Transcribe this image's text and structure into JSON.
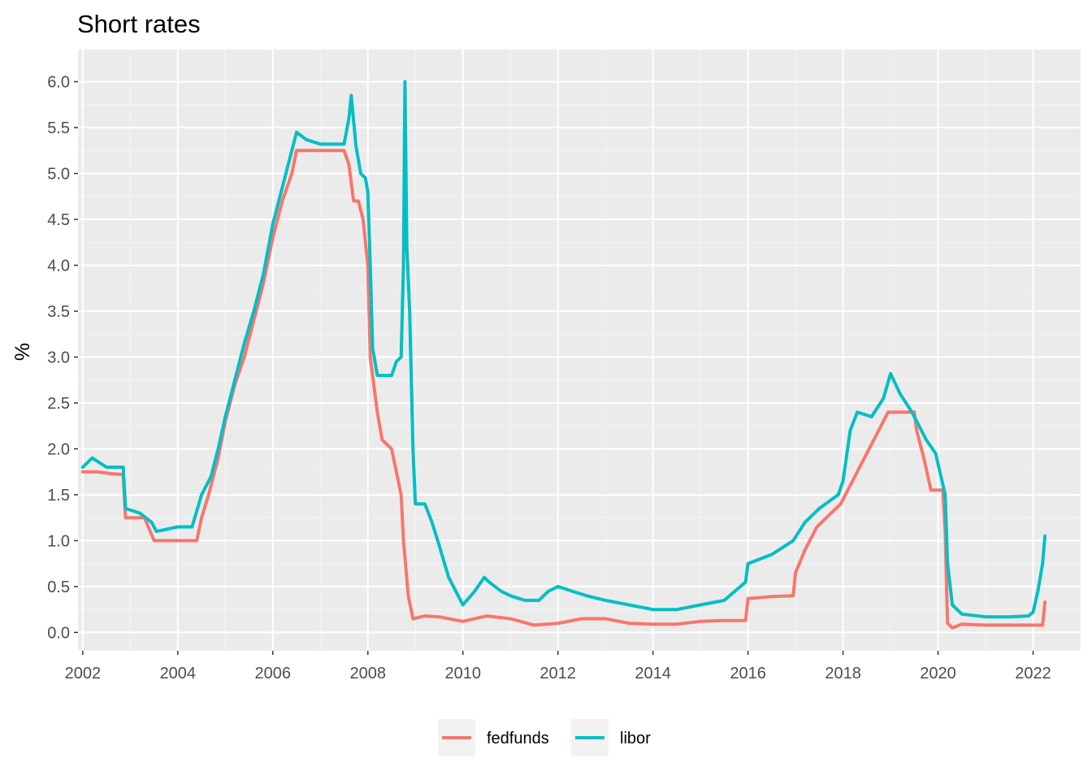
{
  "chart_data": {
    "type": "line",
    "title": "Short rates",
    "xlabel": "",
    "ylabel": "%",
    "xlim": [
      2001.9,
      2023.0
    ],
    "ylim": [
      -0.2,
      6.35
    ],
    "x_ticks": [
      "2002",
      "2004",
      "2006",
      "2008",
      "2010",
      "2012",
      "2014",
      "2016",
      "2018",
      "2020",
      "2022"
    ],
    "y_ticks": [
      "0.0",
      "0.5",
      "1.0",
      "1.5",
      "2.0",
      "2.5",
      "3.0",
      "3.5",
      "4.0",
      "4.5",
      "5.0",
      "5.5",
      "6.0"
    ],
    "grid": true,
    "legend_position": "bottom",
    "series": [
      {
        "name": "fedfunds",
        "color": "#F8766D",
        "points": [
          [
            2002.0,
            1.75
          ],
          [
            2002.3,
            1.75
          ],
          [
            2002.6,
            1.73
          ],
          [
            2002.85,
            1.72
          ],
          [
            2002.9,
            1.25
          ],
          [
            2003.3,
            1.25
          ],
          [
            2003.5,
            1.0
          ],
          [
            2004.0,
            1.0
          ],
          [
            2004.4,
            1.0
          ],
          [
            2004.5,
            1.25
          ],
          [
            2004.65,
            1.5
          ],
          [
            2004.85,
            1.9
          ],
          [
            2005.0,
            2.3
          ],
          [
            2005.2,
            2.7
          ],
          [
            2005.4,
            3.0
          ],
          [
            2005.6,
            3.4
          ],
          [
            2005.8,
            3.8
          ],
          [
            2006.0,
            4.3
          ],
          [
            2006.2,
            4.7
          ],
          [
            2006.4,
            5.0
          ],
          [
            2006.5,
            5.25
          ],
          [
            2007.0,
            5.25
          ],
          [
            2007.5,
            5.25
          ],
          [
            2007.6,
            5.1
          ],
          [
            2007.7,
            4.7
          ],
          [
            2007.8,
            4.7
          ],
          [
            2007.9,
            4.5
          ],
          [
            2008.0,
            4.0
          ],
          [
            2008.05,
            3.0
          ],
          [
            2008.2,
            2.4
          ],
          [
            2008.3,
            2.1
          ],
          [
            2008.5,
            2.0
          ],
          [
            2008.7,
            1.5
          ],
          [
            2008.75,
            1.0
          ],
          [
            2008.85,
            0.4
          ],
          [
            2008.95,
            0.15
          ],
          [
            2009.2,
            0.18
          ],
          [
            2009.5,
            0.17
          ],
          [
            2010.0,
            0.12
          ],
          [
            2010.5,
            0.18
          ],
          [
            2011.0,
            0.15
          ],
          [
            2011.5,
            0.08
          ],
          [
            2012.0,
            0.1
          ],
          [
            2012.5,
            0.15
          ],
          [
            2013.0,
            0.15
          ],
          [
            2013.5,
            0.1
          ],
          [
            2014.0,
            0.09
          ],
          [
            2014.5,
            0.09
          ],
          [
            2015.0,
            0.12
          ],
          [
            2015.5,
            0.13
          ],
          [
            2015.95,
            0.13
          ],
          [
            2016.0,
            0.37
          ],
          [
            2016.5,
            0.39
          ],
          [
            2016.95,
            0.4
          ],
          [
            2017.0,
            0.65
          ],
          [
            2017.2,
            0.9
          ],
          [
            2017.45,
            1.15
          ],
          [
            2017.95,
            1.4
          ],
          [
            2018.2,
            1.65
          ],
          [
            2018.45,
            1.9
          ],
          [
            2018.7,
            2.15
          ],
          [
            2018.95,
            2.4
          ],
          [
            2019.5,
            2.4
          ],
          [
            2019.55,
            2.2
          ],
          [
            2019.7,
            1.9
          ],
          [
            2019.85,
            1.55
          ],
          [
            2020.1,
            1.55
          ],
          [
            2020.15,
            1.1
          ],
          [
            2020.2,
            0.1
          ],
          [
            2020.3,
            0.05
          ],
          [
            2020.5,
            0.09
          ],
          [
            2021.0,
            0.08
          ],
          [
            2021.5,
            0.08
          ],
          [
            2022.0,
            0.08
          ],
          [
            2022.2,
            0.08
          ],
          [
            2022.25,
            0.33
          ]
        ]
      },
      {
        "name": "libor",
        "color": "#00BFC4",
        "points": [
          [
            2002.0,
            1.8
          ],
          [
            2002.2,
            1.9
          ],
          [
            2002.5,
            1.8
          ],
          [
            2002.85,
            1.8
          ],
          [
            2002.9,
            1.35
          ],
          [
            2003.2,
            1.3
          ],
          [
            2003.45,
            1.2
          ],
          [
            2003.55,
            1.1
          ],
          [
            2004.0,
            1.15
          ],
          [
            2004.3,
            1.15
          ],
          [
            2004.5,
            1.5
          ],
          [
            2004.7,
            1.7
          ],
          [
            2004.85,
            2.0
          ],
          [
            2005.0,
            2.35
          ],
          [
            2005.2,
            2.75
          ],
          [
            2005.4,
            3.15
          ],
          [
            2005.6,
            3.5
          ],
          [
            2005.8,
            3.9
          ],
          [
            2006.0,
            4.45
          ],
          [
            2006.2,
            4.85
          ],
          [
            2006.4,
            5.25
          ],
          [
            2006.5,
            5.45
          ],
          [
            2006.7,
            5.37
          ],
          [
            2007.0,
            5.32
          ],
          [
            2007.5,
            5.32
          ],
          [
            2007.6,
            5.6
          ],
          [
            2007.65,
            5.85
          ],
          [
            2007.75,
            5.3
          ],
          [
            2007.85,
            5.0
          ],
          [
            2007.95,
            4.95
          ],
          [
            2008.0,
            4.8
          ],
          [
            2008.05,
            4.0
          ],
          [
            2008.1,
            3.1
          ],
          [
            2008.2,
            2.8
          ],
          [
            2008.35,
            2.8
          ],
          [
            2008.5,
            2.8
          ],
          [
            2008.6,
            2.95
          ],
          [
            2008.7,
            3.0
          ],
          [
            2008.75,
            4.0
          ],
          [
            2008.78,
            6.0
          ],
          [
            2008.82,
            4.2
          ],
          [
            2008.88,
            3.5
          ],
          [
            2008.95,
            2.0
          ],
          [
            2009.0,
            1.4
          ],
          [
            2009.2,
            1.4
          ],
          [
            2009.35,
            1.2
          ],
          [
            2009.5,
            0.95
          ],
          [
            2009.7,
            0.6
          ],
          [
            2010.0,
            0.3
          ],
          [
            2010.25,
            0.45
          ],
          [
            2010.45,
            0.6
          ],
          [
            2010.55,
            0.55
          ],
          [
            2010.8,
            0.45
          ],
          [
            2011.0,
            0.4
          ],
          [
            2011.3,
            0.35
          ],
          [
            2011.6,
            0.35
          ],
          [
            2011.8,
            0.45
          ],
          [
            2012.0,
            0.5
          ],
          [
            2012.3,
            0.45
          ],
          [
            2012.6,
            0.4
          ],
          [
            2013.0,
            0.35
          ],
          [
            2013.5,
            0.3
          ],
          [
            2014.0,
            0.25
          ],
          [
            2014.5,
            0.25
          ],
          [
            2015.0,
            0.3
          ],
          [
            2015.5,
            0.35
          ],
          [
            2015.95,
            0.55
          ],
          [
            2016.0,
            0.75
          ],
          [
            2016.5,
            0.85
          ],
          [
            2016.95,
            1.0
          ],
          [
            2017.2,
            1.2
          ],
          [
            2017.5,
            1.35
          ],
          [
            2017.9,
            1.5
          ],
          [
            2018.0,
            1.65
          ],
          [
            2018.15,
            2.2
          ],
          [
            2018.3,
            2.4
          ],
          [
            2018.6,
            2.35
          ],
          [
            2018.85,
            2.55
          ],
          [
            2019.0,
            2.82
          ],
          [
            2019.2,
            2.6
          ],
          [
            2019.45,
            2.4
          ],
          [
            2019.6,
            2.25
          ],
          [
            2019.75,
            2.1
          ],
          [
            2019.95,
            1.95
          ],
          [
            2020.15,
            1.5
          ],
          [
            2020.2,
            0.75
          ],
          [
            2020.3,
            0.3
          ],
          [
            2020.5,
            0.2
          ],
          [
            2021.0,
            0.17
          ],
          [
            2021.5,
            0.17
          ],
          [
            2021.9,
            0.18
          ],
          [
            2022.0,
            0.22
          ],
          [
            2022.1,
            0.45
          ],
          [
            2022.2,
            0.75
          ],
          [
            2022.25,
            1.05
          ]
        ]
      }
    ]
  }
}
